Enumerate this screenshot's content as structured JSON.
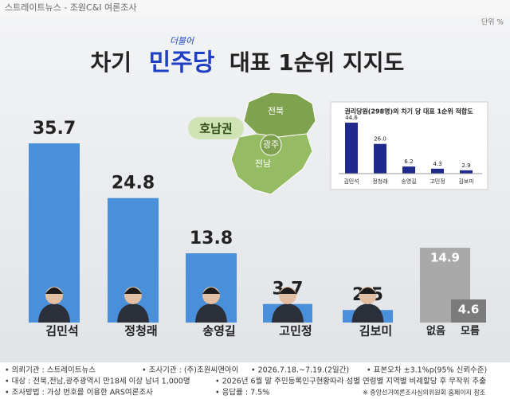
{
  "header": "스트레이트뉴스 - 조원C&I 여론조사",
  "unit": "단위 %",
  "title": {
    "before": "차기",
    "small": "더불어",
    "highlight": "민주당",
    "after": "대표 1순위 지지도"
  },
  "map": {
    "region": "호남권",
    "labels": [
      "전북",
      "광주",
      "전남"
    ]
  },
  "chart_data": [
    {
      "type": "bar",
      "categories": [
        "김민석",
        "정청래",
        "송영길",
        "고민정",
        "김보미",
        "없음",
        "모름"
      ],
      "values": [
        35.7,
        24.8,
        13.8,
        3.7,
        2.5,
        14.9,
        4.6
      ],
      "colors": [
        "#4a8fd9",
        "#4a8fd9",
        "#4a8fd9",
        "#4a8fd9",
        "#4a8fd9",
        "#a9a9a9",
        "#7b7b7b"
      ]
    },
    {
      "type": "bar",
      "title": "권리당원(298명)의 차기 당 대표 1순위 적합도",
      "categories": [
        "김민석",
        "정청래",
        "송영길",
        "고민정",
        "김보미"
      ],
      "values": [
        44.6,
        26.0,
        6.2,
        4.3,
        2.9
      ],
      "value_labels": [
        "44.6",
        "26.0",
        "6.2",
        "4.3",
        "2.9"
      ],
      "color": "#1f2a8c"
    }
  ],
  "footer": [
    "• 의뢰기관 : 스트레이트뉴스",
    "• 조사기관 : (주)조원씨앤아이",
    "• 2026.7.18.~7.19.(2일간)",
    "• 표본오차 ±3.1%p(95% 신뢰수준)",
    "• 대상 : 전북,전남,광주광역시 만18세 이상 남녀 1,000명",
    "• 2026년 6월 말 주민등록인구현황따라 성별 연령별 지역별 비례할당 후 무작위 추출",
    "• 조사방법 : 가상 번호를 이용한 ARS여론조사",
    "• 응답률 : 7.5%",
    "※ 중앙선거여론조사심의위원회 홈페이지 참조"
  ]
}
